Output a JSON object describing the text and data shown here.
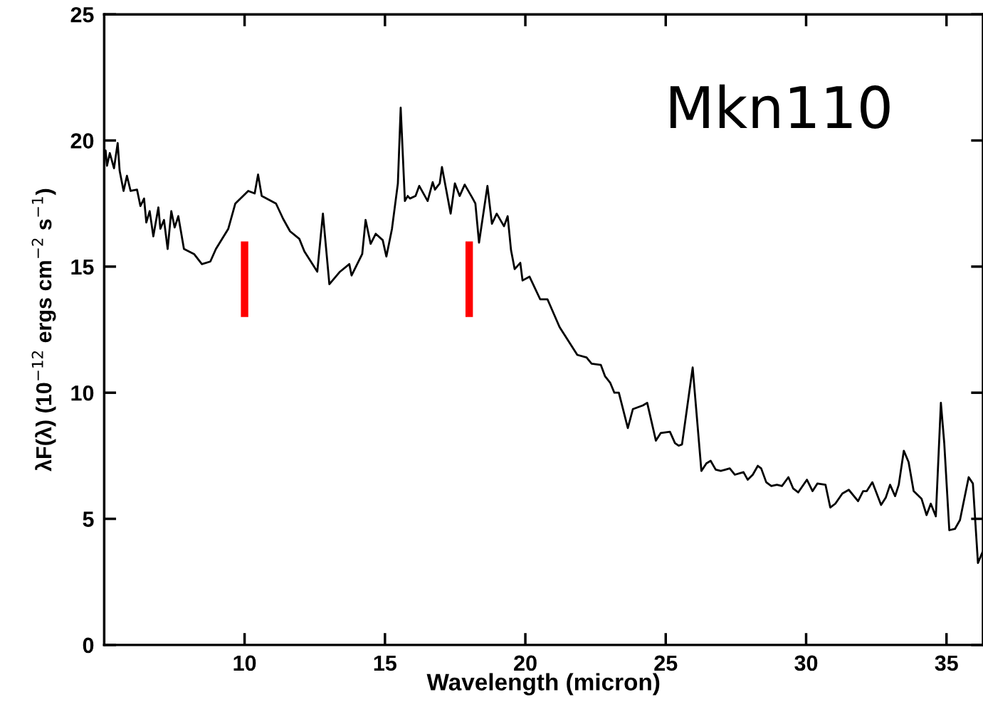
{
  "chart_data": {
    "type": "line",
    "xlabel": "Wavelength (micron)",
    "ylabel": "λF(λ) (10$^{−12}$ ergs cm$^{−2}$ s$^{−1}$)",
    "annotations": [
      "Mkn110"
    ],
    "xlim": [
      5,
      36.3
    ],
    "xticks": [
      10,
      15,
      20,
      25,
      30,
      35
    ],
    "ylim": [
      0,
      25
    ],
    "yticks": [
      0,
      5,
      10,
      15,
      20,
      25
    ],
    "grid": false,
    "legend": false,
    "marker": "none",
    "line_style": "solid",
    "series": [
      {
        "color": "#000000",
        "x": [
          5.05,
          5.1,
          5.2,
          5.35,
          5.48,
          5.55,
          5.69,
          5.81,
          5.94,
          6.17,
          6.29,
          6.42,
          6.5,
          6.62,
          6.75,
          6.93,
          7.0,
          7.13,
          7.26,
          7.39,
          7.51,
          7.64,
          7.84,
          8.2,
          8.48,
          8.78,
          8.98,
          9.42,
          9.67,
          10.13,
          10.36,
          10.48,
          10.61,
          11.12,
          11.37,
          11.62,
          11.95,
          12.13,
          12.59,
          12.79,
          13.02,
          13.4,
          13.73,
          13.81,
          14.19,
          14.31,
          14.49,
          14.67,
          14.92,
          15.05,
          15.25,
          15.46,
          15.56,
          15.71,
          15.81,
          15.89,
          16.09,
          16.22,
          16.52,
          16.7,
          16.78,
          16.95,
          17.03,
          17.34,
          17.49,
          17.66,
          17.84,
          18.1,
          18.22,
          18.35,
          18.65,
          18.81,
          18.98,
          19.24,
          19.37,
          19.49,
          19.62,
          19.82,
          19.9,
          20.15,
          20.53,
          20.79,
          21.22,
          21.85,
          22.18,
          22.36,
          22.69,
          22.84,
          23.02,
          23.17,
          23.33,
          23.65,
          23.83,
          24.19,
          24.34,
          24.65,
          24.82,
          25.15,
          25.33,
          25.46,
          25.58,
          25.96,
          26.27,
          26.45,
          26.6,
          26.78,
          26.96,
          27.28,
          27.46,
          27.77,
          27.92,
          28.1,
          28.28,
          28.4,
          28.58,
          28.76,
          28.96,
          29.14,
          29.37,
          29.54,
          29.72,
          30.03,
          30.23,
          30.4,
          30.69,
          30.86,
          31.04,
          31.29,
          31.52,
          31.85,
          32.03,
          32.16,
          32.36,
          32.67,
          32.84,
          32.99,
          33.17,
          33.3,
          33.48,
          33.65,
          33.83,
          34.11,
          34.29,
          34.44,
          34.62,
          34.8,
          34.92,
          35.1,
          35.3,
          35.48,
          35.79,
          35.94,
          36.12,
          36.29
        ],
        "values": [
          19.6,
          19.0,
          19.5,
          18.9,
          19.9,
          18.8,
          18.0,
          18.6,
          18.0,
          18.05,
          17.4,
          17.7,
          16.75,
          17.2,
          16.2,
          17.35,
          16.5,
          16.85,
          15.7,
          17.2,
          16.55,
          17.0,
          15.7,
          15.5,
          15.1,
          15.2,
          15.7,
          16.5,
          17.5,
          18.0,
          17.9,
          18.65,
          17.8,
          17.5,
          16.9,
          16.4,
          16.1,
          15.6,
          14.8,
          17.1,
          14.3,
          14.8,
          15.1,
          14.65,
          15.5,
          16.85,
          15.9,
          16.3,
          16.05,
          15.4,
          16.5,
          18.3,
          21.3,
          17.6,
          17.8,
          17.7,
          17.8,
          18.2,
          17.6,
          18.35,
          18.05,
          18.3,
          18.95,
          17.1,
          18.3,
          17.8,
          18.25,
          17.75,
          17.5,
          15.95,
          18.2,
          16.7,
          17.1,
          16.6,
          17.0,
          15.65,
          14.9,
          15.15,
          14.45,
          14.6,
          13.7,
          13.7,
          12.6,
          11.5,
          11.4,
          11.15,
          11.1,
          10.65,
          10.4,
          10.0,
          10.0,
          8.6,
          9.35,
          9.5,
          9.6,
          8.1,
          8.4,
          8.45,
          8.0,
          7.9,
          7.95,
          11.0,
          6.9,
          7.2,
          7.3,
          6.95,
          6.9,
          7.0,
          6.75,
          6.85,
          6.55,
          6.75,
          7.1,
          7.0,
          6.45,
          6.3,
          6.35,
          6.3,
          6.65,
          6.2,
          6.05,
          6.55,
          6.1,
          6.4,
          6.35,
          5.45,
          5.6,
          6.0,
          6.15,
          5.7,
          6.1,
          6.1,
          6.45,
          5.55,
          5.85,
          6.35,
          5.9,
          6.35,
          7.7,
          7.25,
          6.1,
          5.8,
          5.15,
          5.6,
          5.1,
          9.6,
          8.0,
          4.55,
          4.6,
          4.95,
          6.65,
          6.4,
          3.25,
          3.7
        ]
      },
      {
        "color": "#ff0000",
        "x": [
          10,
          10
        ],
        "values": [
          13,
          16
        ]
      },
      {
        "color": "#ff0000",
        "x": [
          18,
          18
        ],
        "values": [
          13,
          16
        ]
      }
    ]
  }
}
